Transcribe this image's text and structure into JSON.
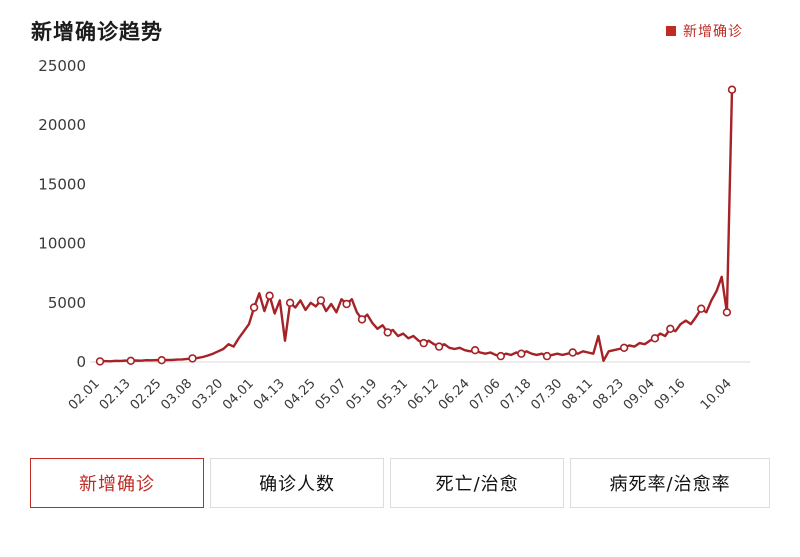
{
  "header": {
    "title": "新增确诊趋势",
    "legend_label": "新增确诊"
  },
  "colors": {
    "line": "#a52226",
    "accent": "#bf2c24",
    "axis_text": "#3a3a3a",
    "baseline": "#d9d9d9"
  },
  "chart_data": {
    "type": "line",
    "title": "新增确诊趋势",
    "xlabel": "",
    "ylabel": "",
    "ylim": [
      0,
      25000
    ],
    "yticks": [
      0,
      5000,
      10000,
      15000,
      20000,
      25000
    ],
    "grid": false,
    "legend_position": "top-right",
    "legend": [
      "新增确诊"
    ],
    "xticks": [
      {
        "label": "02.01",
        "i": 0
      },
      {
        "label": "02.13",
        "i": 6
      },
      {
        "label": "02.25",
        "i": 12
      },
      {
        "label": "03.08",
        "i": 18
      },
      {
        "label": "03.20",
        "i": 24
      },
      {
        "label": "04.01",
        "i": 30
      },
      {
        "label": "04.13",
        "i": 36
      },
      {
        "label": "04.25",
        "i": 42
      },
      {
        "label": "05.07",
        "i": 48
      },
      {
        "label": "05.19",
        "i": 54
      },
      {
        "label": "05.31",
        "i": 60
      },
      {
        "label": "06.12",
        "i": 66
      },
      {
        "label": "06.24",
        "i": 72
      },
      {
        "label": "07.06",
        "i": 78
      },
      {
        "label": "07.18",
        "i": 84
      },
      {
        "label": "07.30",
        "i": 90
      },
      {
        "label": "08.11",
        "i": 96
      },
      {
        "label": "08.23",
        "i": 102
      },
      {
        "label": "09.04",
        "i": 108
      },
      {
        "label": "09.16",
        "i": 114
      },
      {
        "label": "10.04",
        "i": 123
      }
    ],
    "series": [
      {
        "name": "新增确诊",
        "values": [
          50,
          80,
          60,
          100,
          90,
          120,
          100,
          130,
          110,
          150,
          140,
          160,
          150,
          180,
          170,
          200,
          220,
          260,
          300,
          350,
          420,
          550,
          700,
          900,
          1100,
          1500,
          1300,
          2000,
          2600,
          3200,
          4600,
          5800,
          4300,
          5600,
          4100,
          5200,
          1800,
          5000,
          4600,
          5200,
          4400,
          5000,
          4700,
          5200,
          4300,
          4900,
          4200,
          5300,
          4900,
          5300,
          4200,
          3600,
          4000,
          3300,
          2800,
          3100,
          2500,
          2700,
          2200,
          2400,
          2000,
          2200,
          1800,
          1600,
          1800,
          1500,
          1300,
          1500,
          1200,
          1100,
          1200,
          1000,
          900,
          1000,
          800,
          700,
          800,
          600,
          500,
          700,
          600,
          800,
          700,
          900,
          700,
          600,
          700,
          500,
          600,
          700,
          600,
          700,
          800,
          700,
          900,
          800,
          700,
          2200,
          100,
          900,
          1000,
          1100,
          1200,
          1400,
          1300,
          1600,
          1500,
          1800,
          2000,
          2400,
          2200,
          2800,
          2600,
          3200,
          3500,
          3200,
          3800,
          4500,
          4200,
          5200,
          6000,
          7200,
          4200,
          23000
        ],
        "marker_indices": [
          0,
          6,
          12,
          18,
          30,
          33,
          37,
          43,
          48,
          51,
          56,
          63,
          66,
          73,
          78,
          82,
          87,
          92,
          102,
          108,
          111,
          117,
          122,
          123
        ]
      }
    ]
  },
  "tabs": [
    {
      "label": "新增确诊",
      "active": true
    },
    {
      "label": "确诊人数",
      "active": false
    },
    {
      "label": "死亡/治愈",
      "active": false
    },
    {
      "label": "病死率/治愈率",
      "active": false
    }
  ]
}
